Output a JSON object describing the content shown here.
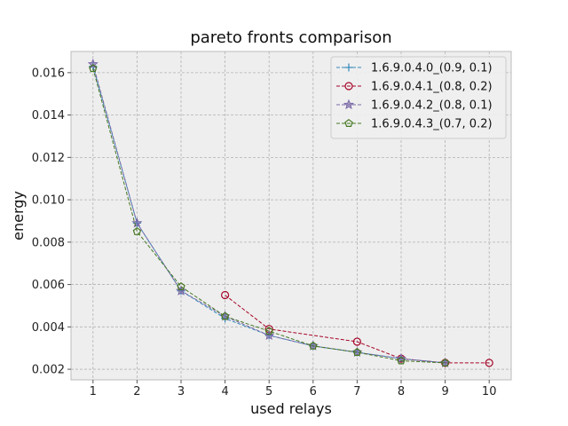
{
  "chart_data": {
    "type": "line",
    "title": "pareto fronts comparison",
    "xlabel": "used relays",
    "ylabel": "energy",
    "xlim": [
      0.5,
      10.5
    ],
    "ylim": [
      0.0015,
      0.017
    ],
    "xticks": [
      1,
      2,
      3,
      4,
      5,
      6,
      7,
      8,
      9,
      10
    ],
    "xtick_labels": [
      "1",
      "2",
      "3",
      "4",
      "5",
      "6",
      "7",
      "8",
      "9",
      "10"
    ],
    "yticks": [
      0.002,
      0.004,
      0.006,
      0.008,
      0.01,
      0.012,
      0.014,
      0.016
    ],
    "ytick_labels": [
      "0.002",
      "0.004",
      "0.006",
      "0.008",
      "0.010",
      "0.012",
      "0.014",
      "0.016"
    ],
    "grid": true,
    "legend_position": "top-right",
    "series": [
      {
        "name": "1.6.9.0.4.0_(0.9, 0.1)",
        "color": "#348ABD",
        "marker": "plus",
        "x": [
          1,
          2,
          3,
          4,
          5,
          6,
          7,
          8,
          9
        ],
        "y": [
          0.0163,
          0.0089,
          0.0057,
          0.0044,
          0.0036,
          0.0031,
          0.0028,
          0.0025,
          0.0023
        ]
      },
      {
        "name": "1.6.9.0.4.1_(0.8, 0.2)",
        "color": "#A60628",
        "marker": "circle",
        "x": [
          4,
          5,
          7,
          8,
          9,
          10
        ],
        "y": [
          0.0055,
          0.0039,
          0.0033,
          0.0025,
          0.0023,
          0.0023
        ]
      },
      {
        "name": "1.6.9.0.4.2_(0.8, 0.1)",
        "color": "#7A68A6",
        "marker": "star",
        "x": [
          1,
          2,
          3,
          4,
          5,
          6,
          7,
          8,
          9
        ],
        "y": [
          0.0164,
          0.0089,
          0.0057,
          0.0045,
          0.0036,
          0.0031,
          0.0028,
          0.0025,
          0.0023
        ]
      },
      {
        "name": "1.6.9.0.4.3_(0.7, 0.2)",
        "color": "#467821",
        "marker": "pentagon",
        "x": [
          1,
          2,
          3,
          4,
          5,
          6,
          7,
          8,
          9
        ],
        "y": [
          0.0162,
          0.0085,
          0.0059,
          0.0045,
          0.0038,
          0.0031,
          0.0028,
          0.0024,
          0.0023
        ]
      }
    ]
  }
}
